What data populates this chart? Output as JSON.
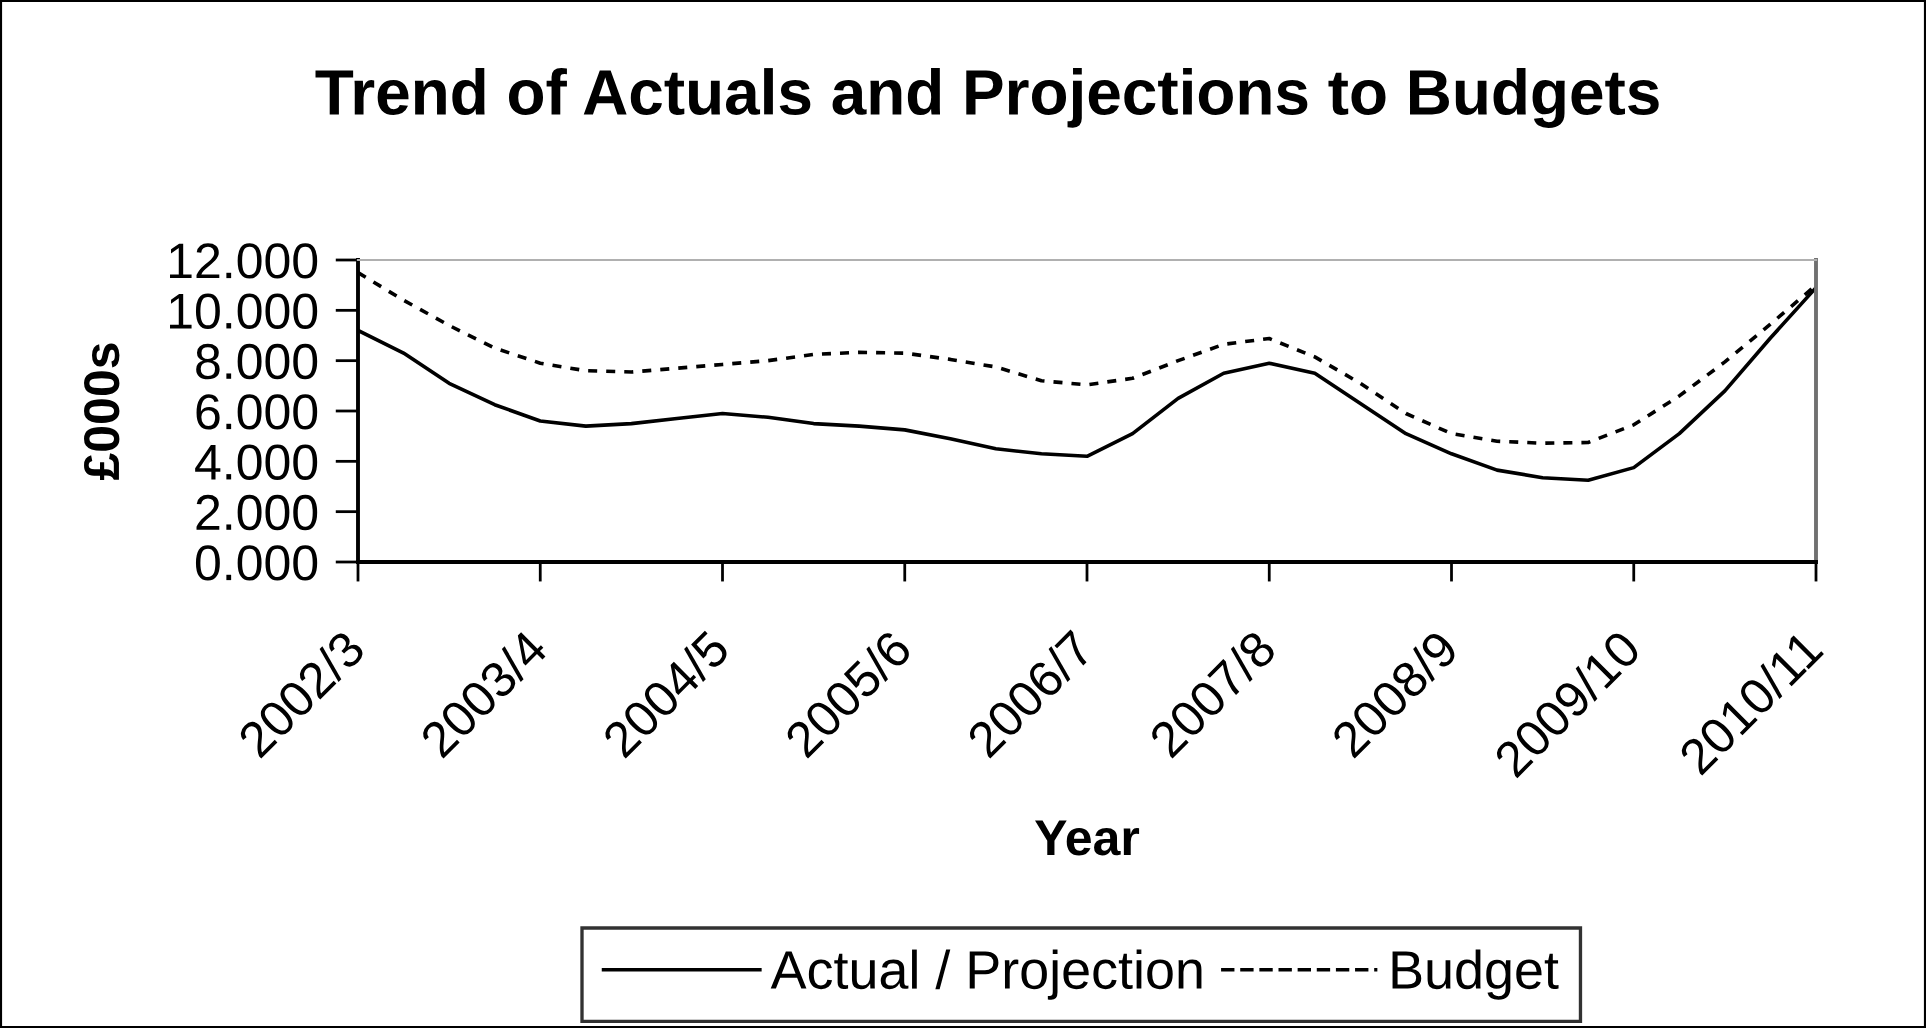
{
  "chart_data": {
    "type": "line",
    "title": "Trend of Actuals and Projections to Budgets",
    "xlabel": "Year",
    "ylabel": "£000s",
    "categories": [
      "2002/3",
      null,
      null,
      null,
      "2003/4",
      null,
      null,
      null,
      "2004/5",
      null,
      null,
      null,
      "2005/6",
      null,
      null,
      null,
      "2006/7",
      null,
      null,
      null,
      "2007/8",
      null,
      null,
      null,
      "2008/9",
      null,
      null,
      null,
      "2009/10",
      null,
      null,
      null,
      "2010/11"
    ],
    "series": [
      {
        "name": "Actual / Projection",
        "color": "#000000",
        "line_style": "solid",
        "values": [
          9.2,
          8.3,
          7.1,
          6.25,
          5.6,
          5.4,
          5.5,
          5.7,
          5.9,
          5.75,
          5.5,
          5.4,
          5.25,
          4.9,
          4.5,
          4.3,
          4.2,
          5.1,
          6.5,
          7.5,
          7.9,
          7.5,
          6.3,
          5.1,
          4.3,
          3.65,
          3.35,
          3.25,
          3.75,
          5.1,
          6.8,
          8.9,
          10.9
        ]
      },
      {
        "name": "Budget",
        "color": "#000000",
        "line_style": "dashed",
        "values": [
          11.5,
          10.4,
          9.4,
          8.5,
          7.9,
          7.6,
          7.55,
          7.7,
          7.85,
          8.0,
          8.25,
          8.33,
          8.3,
          8.05,
          7.75,
          7.2,
          7.04,
          7.3,
          8.0,
          8.65,
          8.88,
          8.15,
          7.1,
          5.9,
          5.1,
          4.8,
          4.72,
          4.75,
          5.45,
          6.6,
          7.95,
          9.45,
          11.0
        ]
      }
    ],
    "ylim": [
      0,
      12
    ],
    "yticks": [
      {
        "value": 0,
        "label": "0.000"
      },
      {
        "value": 2,
        "label": "2.000"
      },
      {
        "value": 4,
        "label": "4.000"
      },
      {
        "value": 6,
        "label": "6.000"
      },
      {
        "value": 8,
        "label": "8.000"
      },
      {
        "value": 10,
        "label": "10.000"
      },
      {
        "value": 12,
        "label": "12.000"
      }
    ],
    "legend": "bottom"
  }
}
